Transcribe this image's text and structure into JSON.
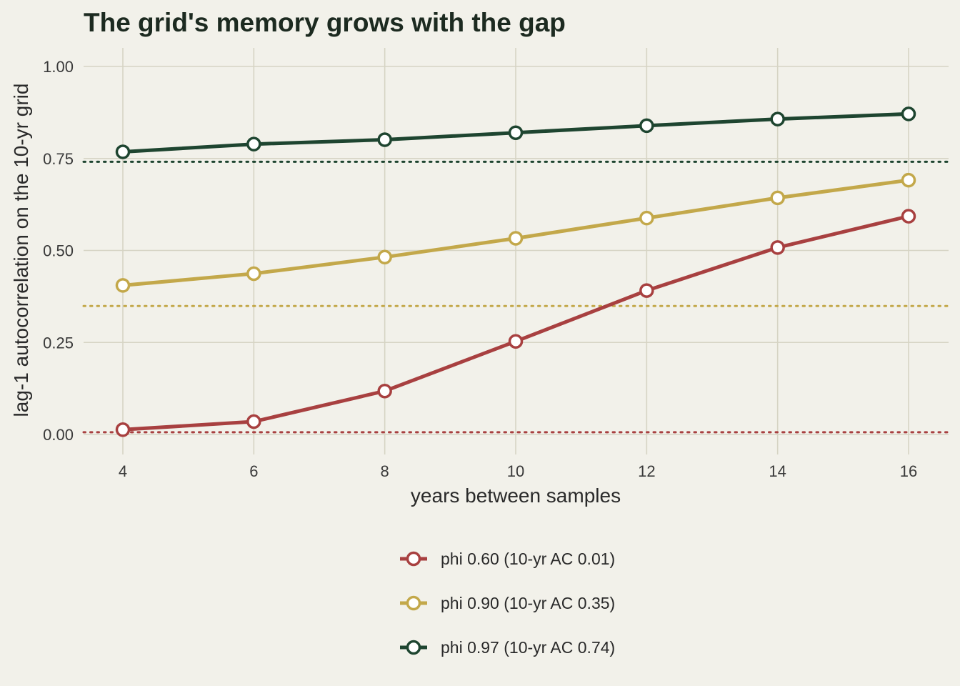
{
  "chart_data": {
    "type": "line",
    "title": "The grid's memory grows with the gap",
    "xlabel": "years between samples",
    "ylabel": "lag-1 autocorrelation on the 10-yr grid",
    "x": [
      4,
      6,
      8,
      10,
      12,
      14,
      16
    ],
    "xlim": [
      3.4,
      16.6
    ],
    "ylim": [
      -0.05,
      1.05
    ],
    "xticks": [
      4,
      6,
      8,
      10,
      12,
      14,
      16
    ],
    "yticks": [
      0.0,
      0.25,
      0.5,
      0.75,
      1.0
    ],
    "ytick_labels": [
      "0.00",
      "0.25",
      "0.50",
      "0.75",
      "1.00"
    ],
    "grid": true,
    "legend_position": "bottom",
    "series": [
      {
        "name": "phi 0.60 (10-yr AC 0.01)",
        "color": "#a84040",
        "values": [
          0.013,
          0.035,
          0.118,
          0.253,
          0.391,
          0.508,
          0.593
        ],
        "reference": 0.006
      },
      {
        "name": "phi 0.90 (10-yr AC 0.35)",
        "color": "#c3a84a",
        "values": [
          0.405,
          0.437,
          0.482,
          0.533,
          0.588,
          0.643,
          0.691
        ],
        "reference": 0.349
      },
      {
        "name": "phi 0.97 (10-yr AC 0.74)",
        "color": "#1e4530",
        "values": [
          0.768,
          0.789,
          0.801,
          0.82,
          0.839,
          0.857,
          0.871
        ],
        "reference": 0.741
      }
    ]
  }
}
